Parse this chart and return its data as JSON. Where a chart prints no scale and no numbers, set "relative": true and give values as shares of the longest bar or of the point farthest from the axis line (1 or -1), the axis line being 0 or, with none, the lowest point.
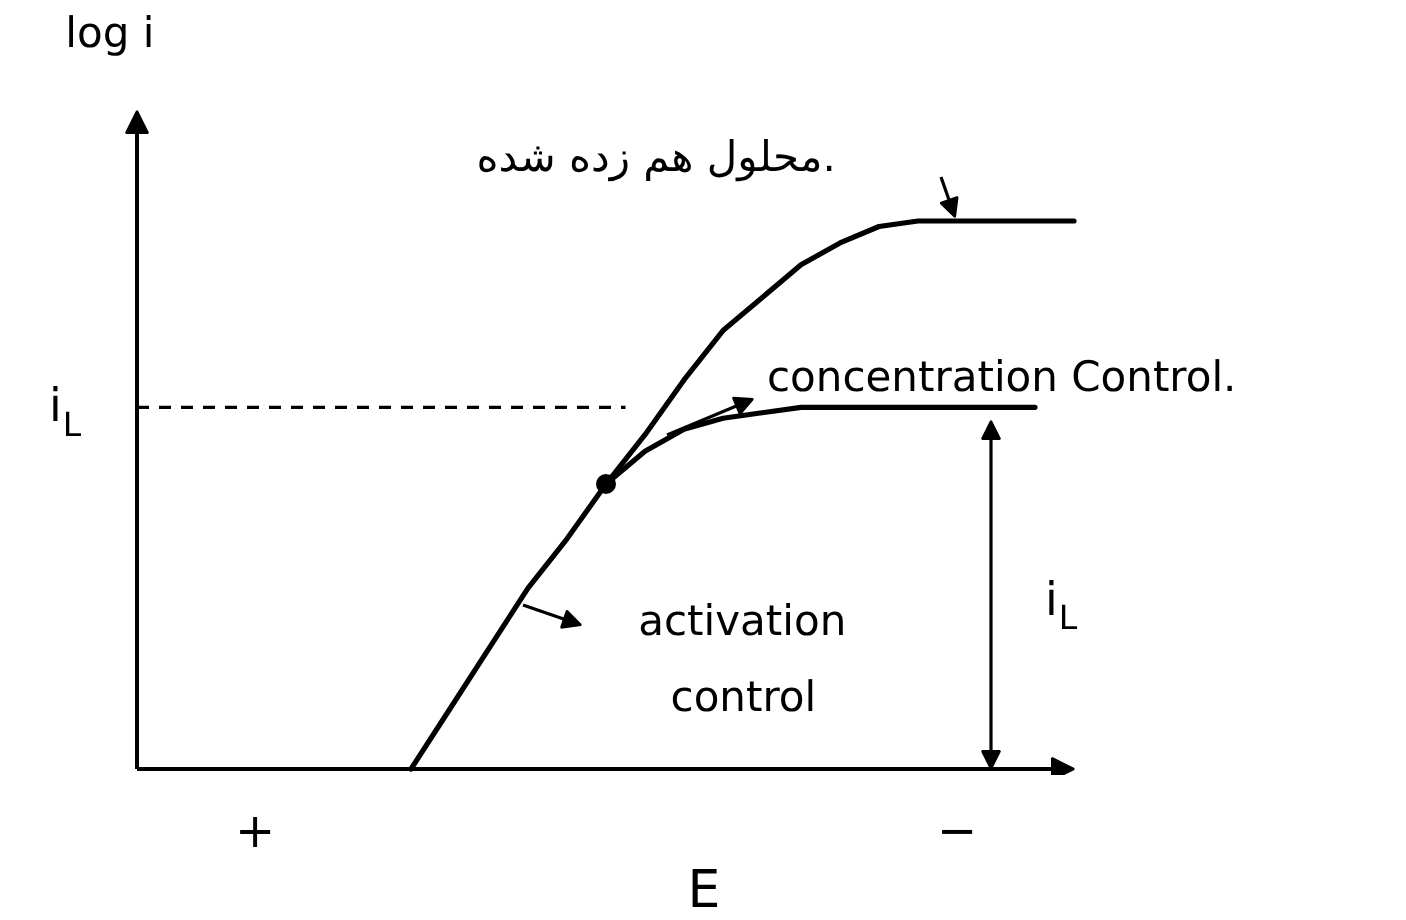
{
  "chart_data": {
    "type": "line",
    "relative": true,
    "xlabel": "E",
    "ylabel": "log i",
    "categories": [
      "+",
      null,
      null,
      null,
      null,
      null,
      null,
      null,
      null,
      null,
      null,
      null,
      null,
      null,
      null,
      null,
      null,
      null,
      "−",
      null,
      null,
      null
    ],
    "series": [
      {
        "color": "#000000",
        "values": [
          null,
          null,
          null,
          null,
          0,
          0.11,
          0.22,
          0.33,
          0.42,
          0.52,
          0.61,
          0.71,
          0.8,
          0.86,
          0.92,
          0.96,
          0.99,
          1,
          1,
          1,
          1,
          1
        ]
      },
      {
        "color": "#000000",
        "values": [
          null,
          null,
          null,
          null,
          null,
          null,
          null,
          null,
          null,
          0.52,
          0.58,
          0.62,
          0.64,
          0.65,
          0.66,
          0.66,
          0.66,
          0.66,
          0.66,
          0.66,
          0.66,
          null
        ]
      },
      {
        "type": "scatter",
        "marker": "circle",
        "color": "#000000",
        "values": [
          null,
          null,
          null,
          null,
          null,
          null,
          null,
          null,
          null,
          0.52,
          null,
          null,
          null,
          null,
          null,
          null,
          null,
          null,
          null,
          null,
          null,
          null
        ]
      }
    ],
    "ref_lines": [
      {
        "axis": "y",
        "value": 0.66,
        "label": "i$_{L}$",
        "color": "#000000",
        "line_style": "dashed"
      }
    ],
    "annotations": [
      "محلول هم زده شده.",
      "concentration Control.",
      "activation control",
      "i$_{L}$"
    ]
  }
}
